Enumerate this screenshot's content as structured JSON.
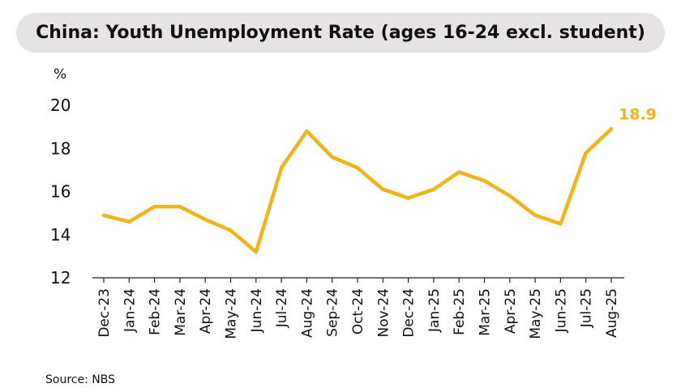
{
  "header": {
    "title": "China: Youth Unemployment Rate (ages 16-24 excl. student)"
  },
  "footer": {
    "source": "Source: NBS"
  },
  "colors": {
    "line": "#f2b419",
    "label": "#f2b419",
    "text": "#111111",
    "title_bg": "#e6e3e4"
  },
  "chart_data": {
    "type": "line",
    "title": "China: Youth Unemployment Rate (ages 16-24 excl. student)",
    "ylabel": "%",
    "xlabel": "",
    "ylim": [
      12,
      20
    ],
    "yticks": [
      12,
      14,
      16,
      18,
      20
    ],
    "grid": false,
    "categories": [
      "Dec-23",
      "Jan-24",
      "Feb-24",
      "Mar-24",
      "Apr-24",
      "May-24",
      "Jun-24",
      "Jul-24",
      "Aug-24",
      "Sep-24",
      "Oct-24",
      "Nov-24",
      "Dec-24",
      "Jan-25",
      "Feb-25",
      "Mar-25",
      "Apr-25",
      "May-25",
      "Jun-25",
      "Jul-25",
      "Aug-25"
    ],
    "series": [
      {
        "values": [
          14.9,
          14.6,
          15.3,
          15.3,
          14.7,
          14.2,
          13.2,
          17.1,
          18.8,
          17.6,
          17.1,
          16.1,
          15.7,
          16.1,
          16.9,
          16.5,
          15.8,
          14.9,
          14.5,
          17.8,
          18.9
        ]
      }
    ],
    "end_label": "18.9"
  }
}
